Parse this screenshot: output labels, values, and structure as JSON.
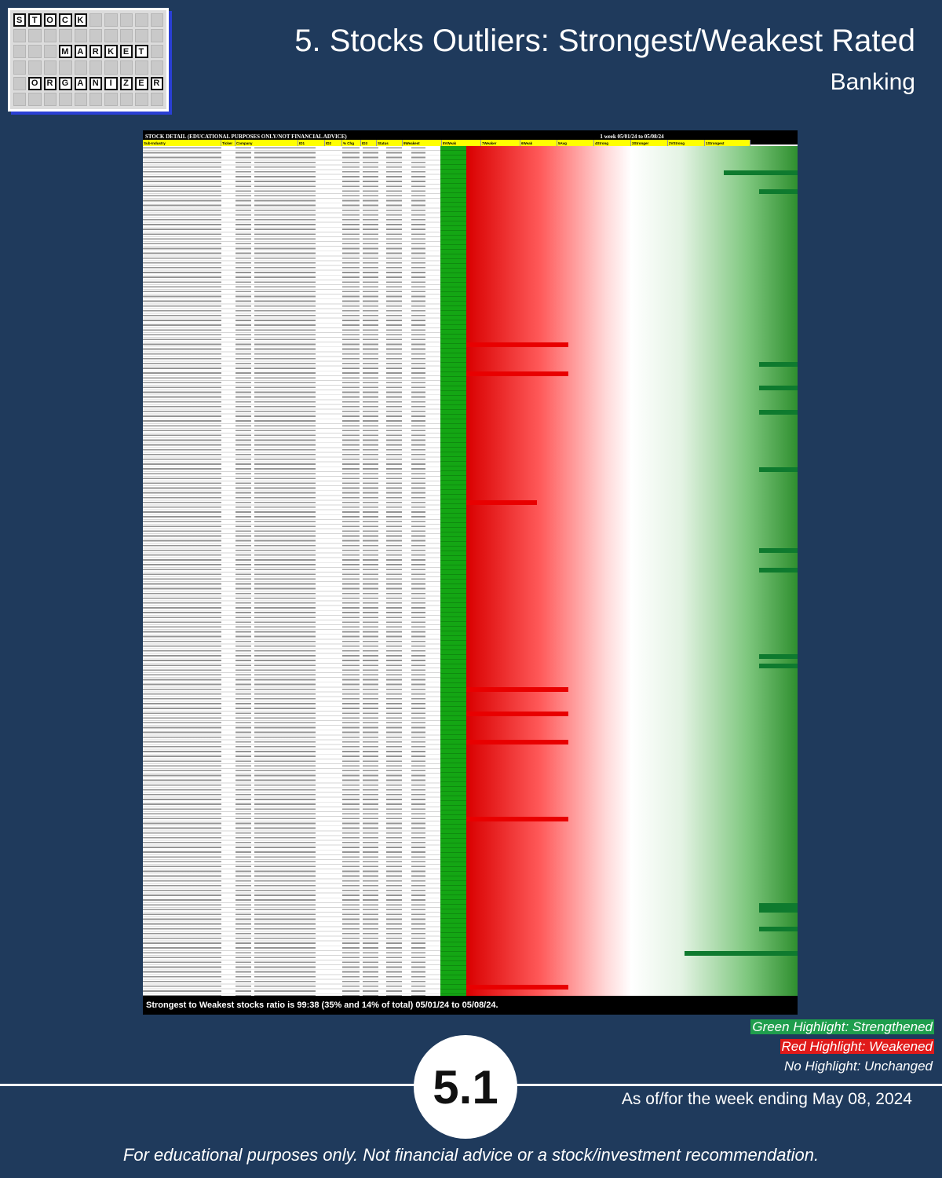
{
  "logo": {
    "row1": [
      "S",
      "T",
      "O",
      "C",
      "K"
    ],
    "row2": [
      "M",
      "A",
      "R",
      "K",
      "E",
      "T"
    ],
    "row3": [
      "O",
      "R",
      "G",
      "A",
      "N",
      "I",
      "Z",
      "E",
      "R"
    ]
  },
  "header": {
    "title": "5. Stocks Outliers: Strongest/Weakest Rated",
    "subtitle": "Banking"
  },
  "sheet": {
    "left_header": "STOCK DETAIL (EDUCATIONAL PURPOSES ONLY/NOT FINANCIAL ADVICE)",
    "right_header": "1 week 05/01/24 to 05/08/24",
    "columns": [
      "Sub-Industry",
      "Ticker",
      "Company",
      "ID1",
      "ID2",
      "% Chg",
      "ID3",
      "Status",
      "9Weakest",
      "8VWeak",
      "7Weaker",
      "6Weak",
      "5Avg",
      "4Strong",
      "3Stronger",
      "2VStrong",
      "1Strongest"
    ],
    "footer": "Strongest to Weakest stocks ratio is 99:38 (35% and 14% of total) 05/01/24 to 05/08/24."
  },
  "legend": {
    "green": "Green Highlight: Strengthened",
    "red": "Red Highlight: Weakened",
    "none": "No Highlight: Unchanged"
  },
  "badge": "5.1",
  "asof": "As of/for the week ending May 08, 2024",
  "disclaimer": "For educational purposes only. Not financial advice or a stock/investment recommendation."
}
